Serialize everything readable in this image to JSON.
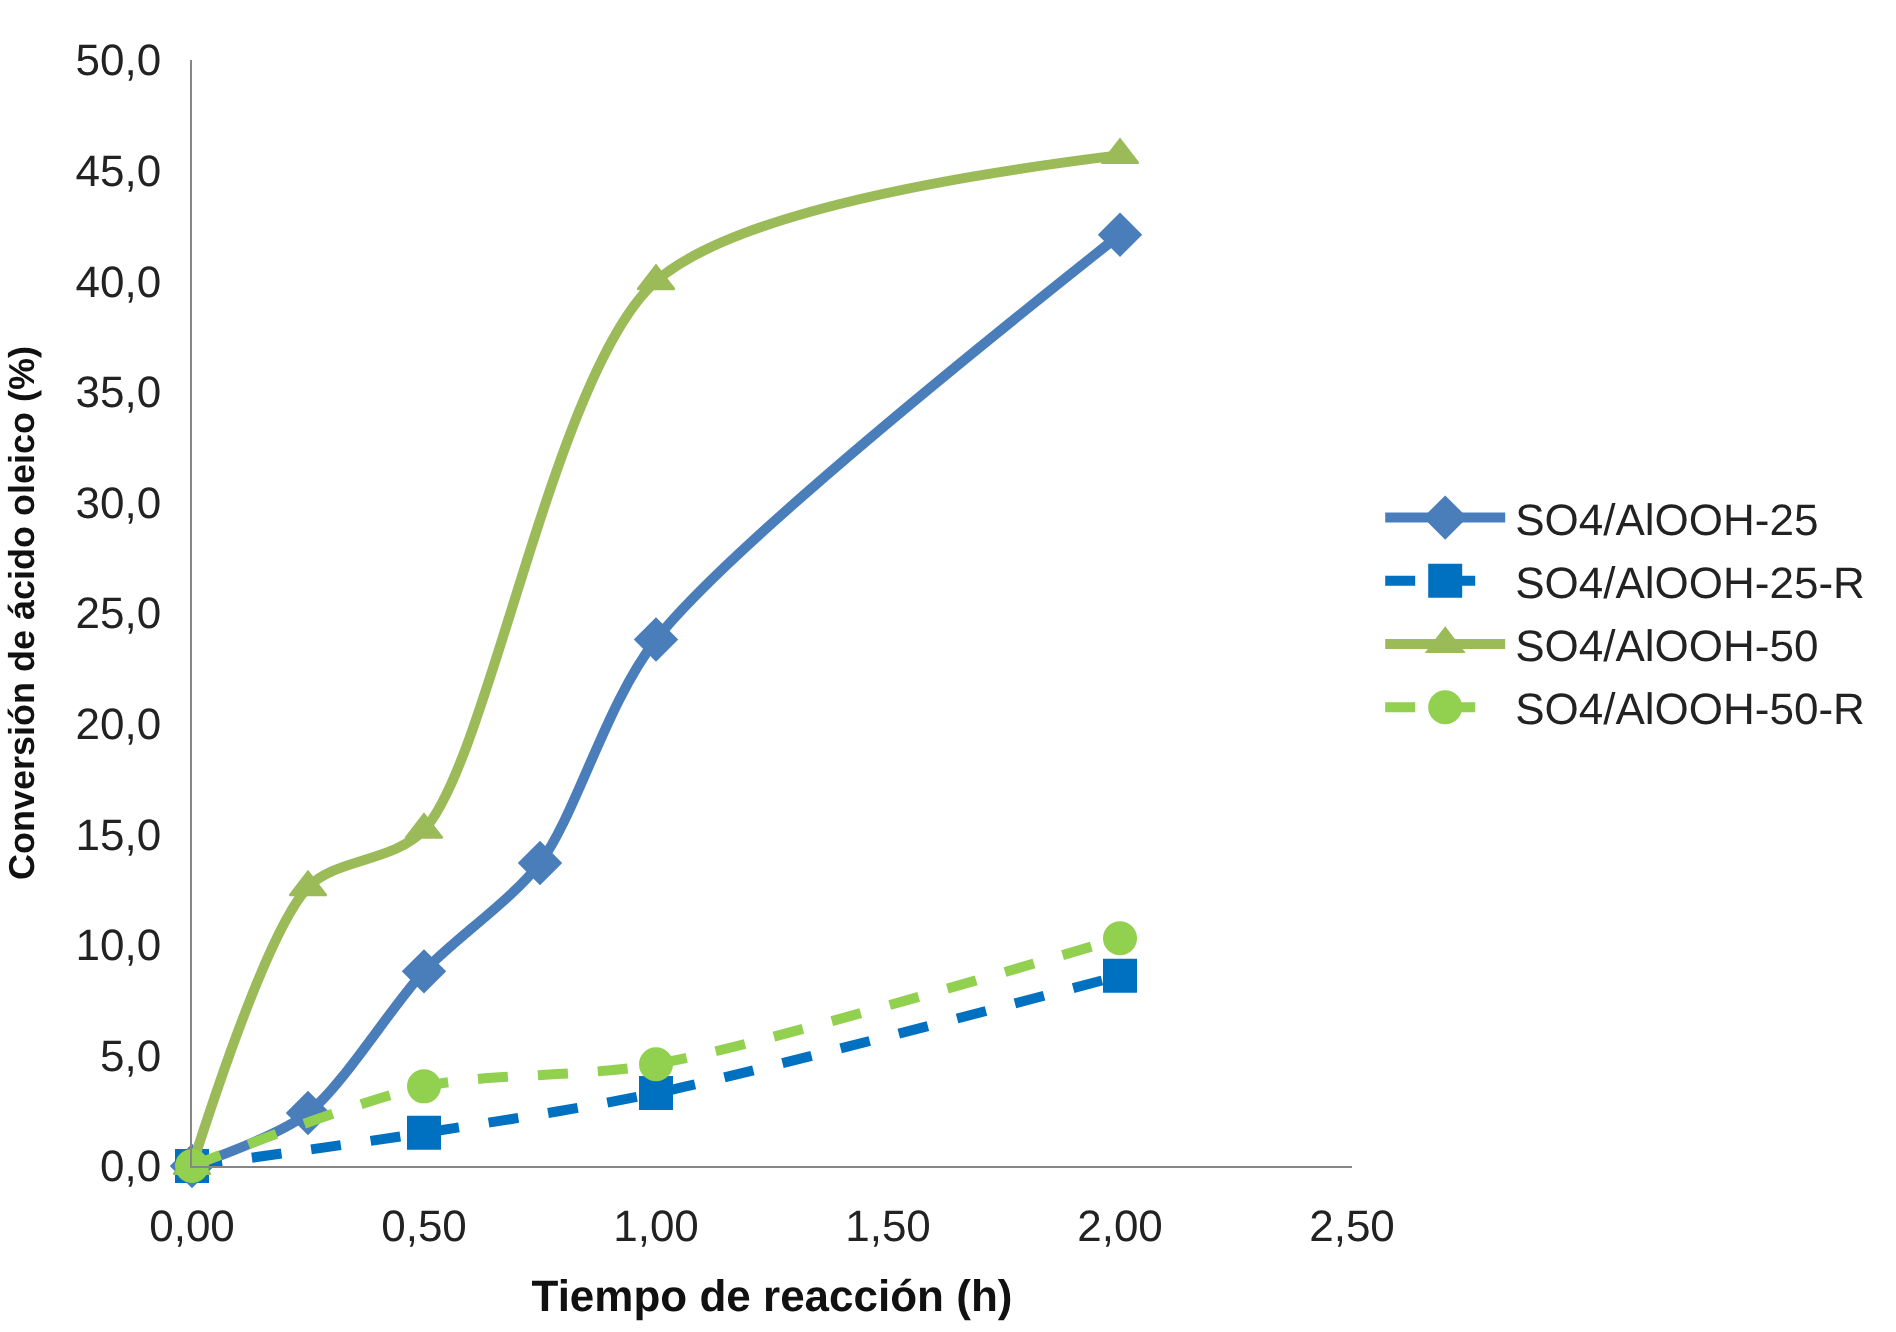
{
  "chart_data": {
    "type": "line",
    "xlabel": "Tiempo de reacción (h)",
    "ylabel": "Conversión de ácido oleico (%)",
    "xlim": [
      0,
      2.5
    ],
    "ylim": [
      0,
      50
    ],
    "xticks": [
      {
        "value": 0,
        "label": "0,00"
      },
      {
        "value": 0.5,
        "label": "0,50"
      },
      {
        "value": 1,
        "label": "1,00"
      },
      {
        "value": 1.5,
        "label": "1,50"
      },
      {
        "value": 2,
        "label": "2,00"
      },
      {
        "value": 2.5,
        "label": "2,50"
      }
    ],
    "yticks": [
      {
        "value": 0,
        "label": "0,0"
      },
      {
        "value": 5,
        "label": "5,0"
      },
      {
        "value": 10,
        "label": "10,0"
      },
      {
        "value": 15,
        "label": "15,0"
      },
      {
        "value": 20,
        "label": "20,0"
      },
      {
        "value": 25,
        "label": "25,0"
      },
      {
        "value": 30,
        "label": "30,0"
      },
      {
        "value": 35,
        "label": "35,0"
      },
      {
        "value": 40,
        "label": "40,0"
      },
      {
        "value": 45,
        "label": "45,0"
      },
      {
        "value": 50,
        "label": "50,0"
      }
    ],
    "legend": "right",
    "series": [
      {
        "name": "SO4/AlOOH-25",
        "color": "#4a7ebb",
        "x": [
          0,
          0.25,
          0.5,
          0.75,
          1,
          2
        ],
        "values": [
          0,
          2.4,
          8.8,
          13.7,
          23.8,
          42.1
        ],
        "marker": "diamond",
        "line_style": "solid"
      },
      {
        "name": "SO4/AlOOH-25-R",
        "color": "#0070c0",
        "x": [
          0,
          0.5,
          1,
          2
        ],
        "values": [
          0,
          1.5,
          3.3,
          8.6
        ],
        "marker": "square",
        "line_style": "dashed"
      },
      {
        "name": "SO4/AlOOH-50",
        "color": "#9bbb59",
        "x": [
          0,
          0.25,
          0.5,
          1,
          2
        ],
        "values": [
          0,
          12.6,
          15.2,
          40.0,
          45.7
        ],
        "marker": "triangle",
        "line_style": "solid"
      },
      {
        "name": "SO4/AlOOH-50-R",
        "color": "#92d050",
        "x": [
          0,
          0.5,
          1,
          2
        ],
        "values": [
          0,
          3.6,
          4.6,
          10.3
        ],
        "marker": "circle",
        "line_style": "dashed"
      }
    ]
  }
}
